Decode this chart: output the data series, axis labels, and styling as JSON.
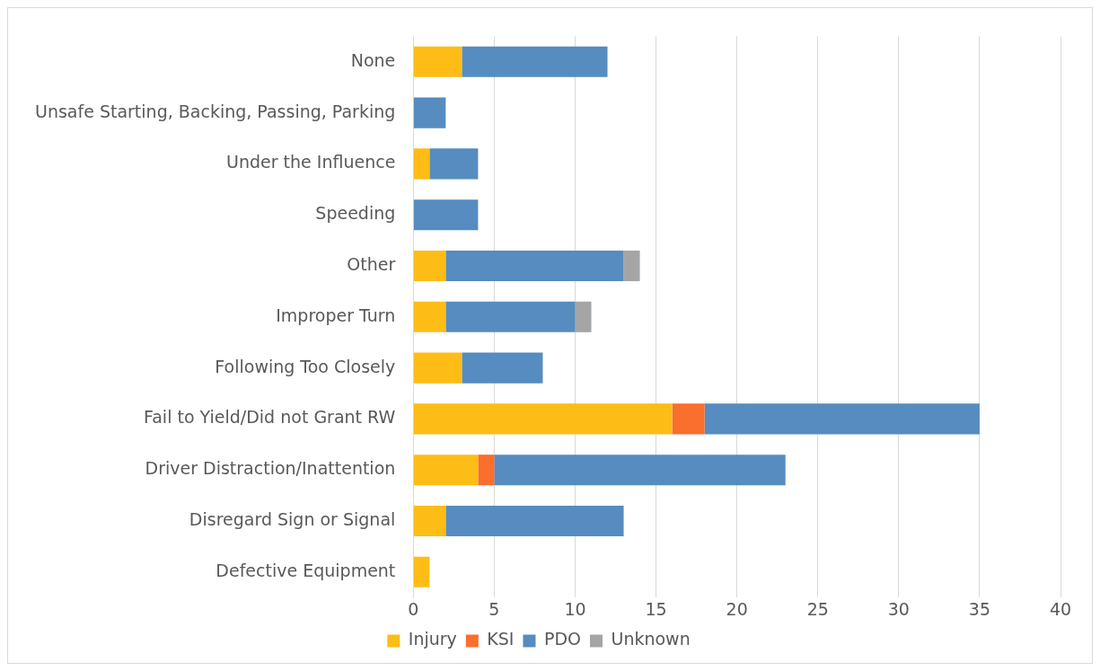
{
  "chart_data": {
    "type": "bar",
    "orientation": "horizontal",
    "stacked": true,
    "categories": [
      "None",
      "Unsafe Starting, Backing, Passing, Parking",
      "Under the Influence",
      "Speeding",
      "Other",
      "Improper Turn",
      "Following Too Closely",
      "Fail to Yield/Did not Grant RW",
      "Driver Distraction/Inattention",
      "Disregard Sign or Signal",
      "Defective Equipment"
    ],
    "series": [
      {
        "name": "Injury",
        "color": "#fdbd16",
        "values": [
          3,
          null,
          1,
          null,
          2,
          2,
          3,
          16,
          4,
          2,
          1
        ]
      },
      {
        "name": "KSI",
        "color": "#fa6e2e",
        "values": [
          null,
          null,
          null,
          null,
          null,
          null,
          null,
          2,
          1,
          null,
          null
        ]
      },
      {
        "name": "PDO",
        "color": "#568cbf",
        "values": [
          9,
          2,
          3,
          4,
          11,
          8,
          5,
          17,
          18,
          11,
          null
        ]
      },
      {
        "name": "Unknown",
        "color": "#a5a5a5",
        "values": [
          null,
          null,
          null,
          null,
          1,
          1,
          null,
          null,
          null,
          null,
          null
        ]
      }
    ],
    "xlim": [
      0,
      40
    ],
    "xticks": [
      0,
      5,
      10,
      15,
      20,
      25,
      30,
      35,
      40
    ],
    "grid": "x",
    "legend": "bottom"
  }
}
